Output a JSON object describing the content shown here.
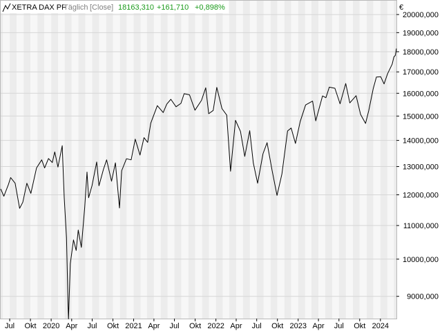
{
  "chart_data": {
    "type": "line",
    "title": "XETRA DAX PF",
    "interval": "Täglich",
    "price_type": "[Close]",
    "last_value": "18163,310",
    "change": "+161,710",
    "change_pct": "+0,898%",
    "currency": "€",
    "y_scale": "log",
    "ylim": [
      8450,
      20800
    ],
    "y_ticks": [
      {
        "value": 9000,
        "label": "9000,000"
      },
      {
        "value": 10000,
        "label": "10000,000"
      },
      {
        "value": 11000,
        "label": "11000,000"
      },
      {
        "value": 12000,
        "label": "12000,000"
      },
      {
        "value": 13000,
        "label": "13000,000"
      },
      {
        "value": 14000,
        "label": "14000,000"
      },
      {
        "value": 15000,
        "label": "15000,000"
      },
      {
        "value": 16000,
        "label": "16000,000"
      },
      {
        "value": 17000,
        "label": "17000,000"
      },
      {
        "value": 18000,
        "label": "18000,000"
      },
      {
        "value": 19000,
        "label": "19000,000"
      },
      {
        "value": 20000,
        "label": "20000,000"
      }
    ],
    "xlim": [
      "2019-05-22",
      "2024-03-12"
    ],
    "x_ticks": [
      {
        "date": "2019-07-01",
        "label": "Jul"
      },
      {
        "date": "2019-10-01",
        "label": "Okt"
      },
      {
        "date": "2020-01-01",
        "label": "2020"
      },
      {
        "date": "2020-04-01",
        "label": "Apr"
      },
      {
        "date": "2020-07-01",
        "label": "Jul"
      },
      {
        "date": "2020-10-01",
        "label": "Okt"
      },
      {
        "date": "2021-01-01",
        "label": "2021"
      },
      {
        "date": "2021-04-01",
        "label": "Apr"
      },
      {
        "date": "2021-07-01",
        "label": "Jul"
      },
      {
        "date": "2021-10-01",
        "label": "Okt"
      },
      {
        "date": "2022-01-01",
        "label": "2022"
      },
      {
        "date": "2022-04-01",
        "label": "Apr"
      },
      {
        "date": "2022-07-01",
        "label": "Jul"
      },
      {
        "date": "2022-10-01",
        "label": "Okt"
      },
      {
        "date": "2023-01-01",
        "label": "2023"
      },
      {
        "date": "2023-04-01",
        "label": "Apr"
      },
      {
        "date": "2023-07-01",
        "label": "Jul"
      },
      {
        "date": "2023-10-01",
        "label": "Okt"
      },
      {
        "date": "2024-01-01",
        "label": "2024"
      }
    ],
    "grid": true,
    "series": [
      {
        "name": "XETRA DAX PF",
        "color": "#000000",
        "points": [
          [
            "2019-05-22",
            12200
          ],
          [
            "2019-06-05",
            11950
          ],
          [
            "2019-06-25",
            12350
          ],
          [
            "2019-07-05",
            12600
          ],
          [
            "2019-07-25",
            12400
          ],
          [
            "2019-08-14",
            11550
          ],
          [
            "2019-08-28",
            11750
          ],
          [
            "2019-09-15",
            12400
          ],
          [
            "2019-10-03",
            12050
          ],
          [
            "2019-10-28",
            12950
          ],
          [
            "2019-11-20",
            13250
          ],
          [
            "2019-12-03",
            12950
          ],
          [
            "2019-12-20",
            13300
          ],
          [
            "2020-01-06",
            13150
          ],
          [
            "2020-01-17",
            13550
          ],
          [
            "2020-01-31",
            12980
          ],
          [
            "2020-02-19",
            13790
          ],
          [
            "2020-02-28",
            11900
          ],
          [
            "2020-03-09",
            10625
          ],
          [
            "2020-03-16",
            8742
          ],
          [
            "2020-03-18",
            8442
          ],
          [
            "2020-03-26",
            9870
          ],
          [
            "2020-04-09",
            10560
          ],
          [
            "2020-04-21",
            10250
          ],
          [
            "2020-04-30",
            10860
          ],
          [
            "2020-05-14",
            10340
          ],
          [
            "2020-05-29",
            11590
          ],
          [
            "2020-06-08",
            12800
          ],
          [
            "2020-06-15",
            11900
          ],
          [
            "2020-06-30",
            12310
          ],
          [
            "2020-07-21",
            13170
          ],
          [
            "2020-07-31",
            12310
          ],
          [
            "2020-08-20",
            12900
          ],
          [
            "2020-09-03",
            13250
          ],
          [
            "2020-09-25",
            12470
          ],
          [
            "2020-10-12",
            13140
          ],
          [
            "2020-10-30",
            11560
          ],
          [
            "2020-11-09",
            12850
          ],
          [
            "2020-11-30",
            13290
          ],
          [
            "2020-12-21",
            13250
          ],
          [
            "2021-01-08",
            14050
          ],
          [
            "2021-01-29",
            13430
          ],
          [
            "2021-02-16",
            14110
          ],
          [
            "2021-03-04",
            13920
          ],
          [
            "2021-03-18",
            14700
          ],
          [
            "2021-04-16",
            15450
          ],
          [
            "2021-05-12",
            15150
          ],
          [
            "2021-05-28",
            15520
          ],
          [
            "2021-06-15",
            15730
          ],
          [
            "2021-07-08",
            15400
          ],
          [
            "2021-07-30",
            15550
          ],
          [
            "2021-08-13",
            15980
          ],
          [
            "2021-09-06",
            15930
          ],
          [
            "2021-09-30",
            15250
          ],
          [
            "2021-10-29",
            15680
          ],
          [
            "2021-11-17",
            16250
          ],
          [
            "2021-11-30",
            15100
          ],
          [
            "2021-12-20",
            15240
          ],
          [
            "2022-01-05",
            16270
          ],
          [
            "2022-01-28",
            15320
          ],
          [
            "2022-02-18",
            15040
          ],
          [
            "2022-03-07",
            12830
          ],
          [
            "2022-03-29",
            14820
          ],
          [
            "2022-04-20",
            14360
          ],
          [
            "2022-05-09",
            13380
          ],
          [
            "2022-05-31",
            14390
          ],
          [
            "2022-06-16",
            13130
          ],
          [
            "2022-07-05",
            12400
          ],
          [
            "2022-07-29",
            13480
          ],
          [
            "2022-08-16",
            13910
          ],
          [
            "2022-09-07",
            12870
          ],
          [
            "2022-09-29",
            11980
          ],
          [
            "2022-10-21",
            12730
          ],
          [
            "2022-11-15",
            14380
          ],
          [
            "2022-12-01",
            14500
          ],
          [
            "2022-12-20",
            13880
          ],
          [
            "2023-01-10",
            14770
          ],
          [
            "2023-02-03",
            15480
          ],
          [
            "2023-03-06",
            15650
          ],
          [
            "2023-03-20",
            14800
          ],
          [
            "2023-04-19",
            15880
          ],
          [
            "2023-05-04",
            15800
          ],
          [
            "2023-05-19",
            16280
          ],
          [
            "2023-06-13",
            16230
          ],
          [
            "2023-07-06",
            15530
          ],
          [
            "2023-07-31",
            16450
          ],
          [
            "2023-08-18",
            15570
          ],
          [
            "2023-09-15",
            15890
          ],
          [
            "2023-10-05",
            15070
          ],
          [
            "2023-10-27",
            14690
          ],
          [
            "2023-11-10",
            15230
          ],
          [
            "2023-11-30",
            16210
          ],
          [
            "2023-12-14",
            16750
          ],
          [
            "2024-01-02",
            16770
          ],
          [
            "2024-01-17",
            16430
          ],
          [
            "2024-02-02",
            16920
          ],
          [
            "2024-02-22",
            17370
          ],
          [
            "2024-03-01",
            17740
          ],
          [
            "2024-03-07",
            17810
          ],
          [
            "2024-03-12",
            18163
          ]
        ]
      }
    ]
  }
}
